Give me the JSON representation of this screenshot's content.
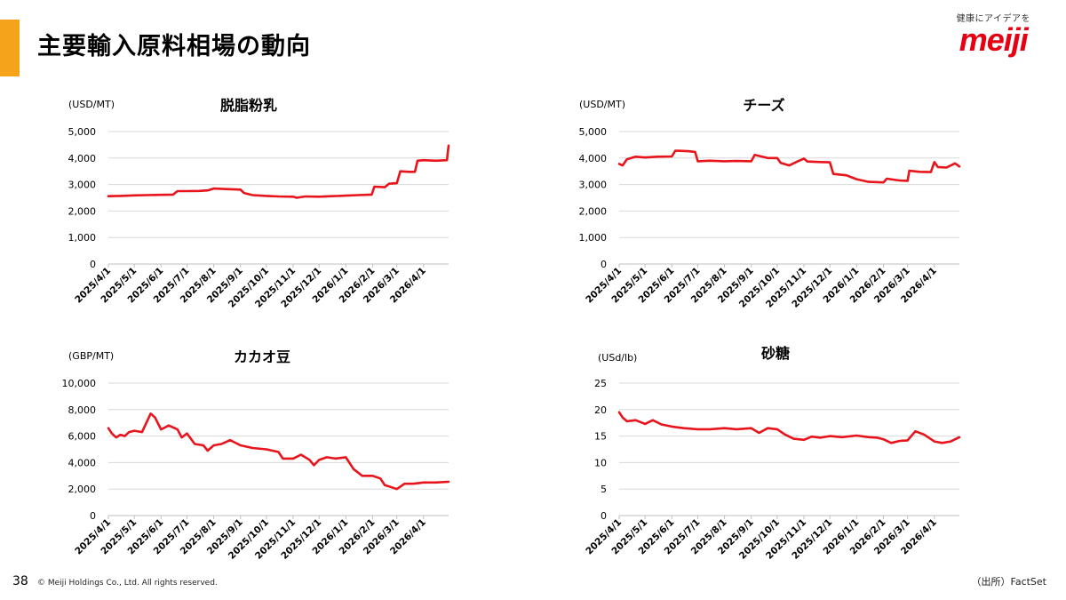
{
  "header": {
    "title": "主要輸入原料相場の動向",
    "accent_color": "#f5a31a"
  },
  "logo": {
    "tagline": "健康にアイデアを",
    "wordmark": "meiji",
    "color": "#e60012"
  },
  "footer": {
    "page_number": "38",
    "copyright": "© Meiji Holdings Co., Ltd. All rights reserved.",
    "source": "（出所）FactSet"
  },
  "chart_data": [
    {
      "type": "line",
      "title": "脱脂粉乳",
      "unit_label": "(USD/MT)",
      "line_color": "#e8141c",
      "grid": true,
      "ylim": [
        0,
        5000
      ],
      "yticks": [
        0,
        1000,
        2000,
        3000,
        4000,
        5000
      ],
      "ytick_labels": [
        "0",
        "1,000",
        "2,000",
        "3,000",
        "4,000",
        "5,000"
      ],
      "xlim": [
        "2025-04-01",
        "2026-04-30"
      ],
      "xticks": [
        "2025-04-01",
        "2025-05-01",
        "2025-06-01",
        "2025-07-01",
        "2025-08-01",
        "2025-09-01",
        "2025-10-01",
        "2025-11-01",
        "2025-12-01",
        "2026-01-01",
        "2026-02-01",
        "2026-03-01",
        "2026-04-01"
      ],
      "xtick_labels": [
        "2025/4/1",
        "2025/5/1",
        "2025/6/1",
        "2025/7/1",
        "2025/8/1",
        "2025/9/1",
        "2025/10/1",
        "2025/11/1",
        "2025/12/1",
        "2026/1/1",
        "2026/2/1",
        "2026/3/1",
        "2026/4/1"
      ],
      "series": [
        {
          "x": [
            "2025-04-01",
            "2025-04-15",
            "2025-05-01",
            "2025-05-15",
            "2025-06-01",
            "2025-06-15",
            "2025-06-20",
            "2025-07-01",
            "2025-07-15",
            "2025-07-25",
            "2025-08-01",
            "2025-08-15",
            "2025-09-01",
            "2025-09-05",
            "2025-09-15",
            "2025-10-01",
            "2025-10-15",
            "2025-11-01",
            "2025-11-05",
            "2025-11-15",
            "2025-12-01",
            "2025-12-15",
            "2026-01-01",
            "2026-01-15",
            "2026-01-31",
            "2026-02-03",
            "2026-02-15",
            "2026-02-20",
            "2026-03-01",
            "2026-03-05",
            "2026-03-15",
            "2026-03-22",
            "2026-03-25",
            "2026-04-01",
            "2026-04-15",
            "2026-04-28",
            "2026-04-30"
          ],
          "y": [
            2560,
            2570,
            2590,
            2600,
            2610,
            2620,
            2750,
            2750,
            2760,
            2780,
            2850,
            2830,
            2810,
            2680,
            2600,
            2570,
            2550,
            2540,
            2500,
            2550,
            2540,
            2560,
            2580,
            2600,
            2620,
            2920,
            2900,
            3030,
            3050,
            3500,
            3480,
            3480,
            3900,
            3920,
            3900,
            3920,
            4470
          ]
        }
      ]
    },
    {
      "type": "line",
      "title": "チーズ",
      "unit_label": "(USD/MT)",
      "line_color": "#e8141c",
      "grid": true,
      "ylim": [
        0,
        5000
      ],
      "yticks": [
        0,
        1000,
        2000,
        3000,
        4000,
        5000
      ],
      "ytick_labels": [
        "0",
        "1,000",
        "2,000",
        "3,000",
        "4,000",
        "5,000"
      ],
      "xlim": [
        "2025-04-01",
        "2026-04-30"
      ],
      "xticks": [
        "2025-04-01",
        "2025-05-01",
        "2025-06-01",
        "2025-07-01",
        "2025-08-01",
        "2025-09-01",
        "2025-10-01",
        "2025-11-01",
        "2025-12-01",
        "2026-01-01",
        "2026-02-01",
        "2026-03-01",
        "2026-04-01"
      ],
      "xtick_labels": [
        "2025/4/1",
        "2025/5/1",
        "2025/6/1",
        "2025/7/1",
        "2025/8/1",
        "2025/9/1",
        "2025/10/1",
        "2025/11/1",
        "2025/12/1",
        "2026/1/1",
        "2026/2/1",
        "2026/3/1",
        "2026/4/1"
      ],
      "series": [
        {
          "x": [
            "2025-04-01",
            "2025-04-05",
            "2025-04-10",
            "2025-04-20",
            "2025-05-01",
            "2025-05-15",
            "2025-06-01",
            "2025-06-05",
            "2025-06-20",
            "2025-06-28",
            "2025-07-01",
            "2025-07-15",
            "2025-08-01",
            "2025-08-15",
            "2025-09-01",
            "2025-09-05",
            "2025-09-20",
            "2025-10-01",
            "2025-10-05",
            "2025-10-15",
            "2025-10-25",
            "2025-11-01",
            "2025-11-05",
            "2025-11-20",
            "2025-12-01",
            "2025-12-05",
            "2025-12-20",
            "2026-01-01",
            "2026-01-15",
            "2026-02-01",
            "2026-02-05",
            "2026-02-20",
            "2026-03-01",
            "2026-03-03",
            "2026-03-15",
            "2026-03-28",
            "2026-04-01",
            "2026-04-05",
            "2026-04-15",
            "2026-04-25",
            "2026-04-30"
          ],
          "y": [
            3780,
            3720,
            3950,
            4050,
            4020,
            4050,
            4060,
            4280,
            4260,
            4230,
            3880,
            3900,
            3880,
            3890,
            3880,
            4120,
            4000,
            4000,
            3820,
            3720,
            3880,
            3980,
            3870,
            3850,
            3840,
            3400,
            3350,
            3200,
            3100,
            3080,
            3220,
            3150,
            3140,
            3520,
            3480,
            3470,
            3850,
            3660,
            3640,
            3800,
            3680
          ]
        }
      ]
    },
    {
      "type": "line",
      "title": "カカオ豆",
      "unit_label": "(GBP/MT)",
      "line_color": "#e8141c",
      "grid": true,
      "ylim": [
        0,
        10000
      ],
      "yticks": [
        0,
        2000,
        4000,
        6000,
        8000,
        10000
      ],
      "ytick_labels": [
        "0",
        "2,000",
        "4,000",
        "6,000",
        "8,000",
        "10,000"
      ],
      "xlim": [
        "2025-04-01",
        "2026-04-30"
      ],
      "xticks": [
        "2025-04-01",
        "2025-05-01",
        "2025-06-01",
        "2025-07-01",
        "2025-08-01",
        "2025-09-01",
        "2025-10-01",
        "2025-11-01",
        "2025-12-01",
        "2026-01-01",
        "2026-02-01",
        "2026-03-01",
        "2026-04-01"
      ],
      "xtick_labels": [
        "2025/4/1",
        "2025/5/1",
        "2025/6/1",
        "2025/7/1",
        "2025/8/1",
        "2025/9/1",
        "2025/10/1",
        "2025/11/1",
        "2025/12/1",
        "2026/1/1",
        "2026/2/1",
        "2026/3/1",
        "2026/4/1"
      ],
      "series": [
        {
          "x": [
            "2025-04-01",
            "2025-04-05",
            "2025-04-10",
            "2025-04-15",
            "2025-04-20",
            "2025-04-25",
            "2025-05-01",
            "2025-05-10",
            "2025-05-20",
            "2025-05-25",
            "2025-06-01",
            "2025-06-10",
            "2025-06-20",
            "2025-06-25",
            "2025-07-01",
            "2025-07-10",
            "2025-07-20",
            "2025-07-25",
            "2025-08-01",
            "2025-08-10",
            "2025-08-20",
            "2025-09-01",
            "2025-09-15",
            "2025-10-01",
            "2025-10-15",
            "2025-10-20",
            "2025-11-01",
            "2025-11-10",
            "2025-11-20",
            "2025-11-25",
            "2025-12-01",
            "2025-12-10",
            "2025-12-20",
            "2026-01-01",
            "2026-01-10",
            "2026-01-20",
            "2026-02-01",
            "2026-02-10",
            "2026-02-15",
            "2026-02-20",
            "2026-03-01",
            "2026-03-10",
            "2026-03-20",
            "2026-04-01",
            "2026-04-15",
            "2026-04-30"
          ],
          "y": [
            6600,
            6200,
            5900,
            6100,
            6000,
            6300,
            6400,
            6300,
            7700,
            7400,
            6500,
            6800,
            6500,
            5900,
            6200,
            5400,
            5300,
            4900,
            5300,
            5400,
            5700,
            5300,
            5100,
            5000,
            4800,
            4300,
            4300,
            4600,
            4200,
            3800,
            4200,
            4400,
            4300,
            4400,
            3500,
            3000,
            3000,
            2800,
            2300,
            2200,
            2000,
            2400,
            2400,
            2500,
            2500,
            2550
          ]
        }
      ]
    },
    {
      "type": "line",
      "title": "砂糖",
      "unit_label": "(USd/lb)",
      "line_color": "#e8141c",
      "grid": true,
      "ylim": [
        0,
        25
      ],
      "yticks": [
        0,
        5,
        10,
        15,
        20,
        25
      ],
      "ytick_labels": [
        "0",
        "5",
        "10",
        "15",
        "20",
        "25"
      ],
      "xlim": [
        "2025-04-01",
        "2026-04-30"
      ],
      "xticks": [
        "2025-04-01",
        "2025-05-01",
        "2025-06-01",
        "2025-07-01",
        "2025-08-01",
        "2025-09-01",
        "2025-10-01",
        "2025-11-01",
        "2025-12-01",
        "2026-01-01",
        "2026-02-01",
        "2026-03-01",
        "2026-04-01"
      ],
      "xtick_labels": [
        "2025/4/1",
        "2025/5/1",
        "2025/6/1",
        "2025/7/1",
        "2025/8/1",
        "2025/9/1",
        "2025/10/1",
        "2025/11/1",
        "2025/12/1",
        "2026/1/1",
        "2026/2/1",
        "2026/3/1",
        "2026/4/1"
      ],
      "series": [
        {
          "x": [
            "2025-04-01",
            "2025-04-05",
            "2025-04-10",
            "2025-04-20",
            "2025-05-01",
            "2025-05-10",
            "2025-05-20",
            "2025-06-01",
            "2025-06-15",
            "2025-07-01",
            "2025-07-15",
            "2025-08-01",
            "2025-08-15",
            "2025-09-01",
            "2025-09-10",
            "2025-09-20",
            "2025-10-01",
            "2025-10-10",
            "2025-10-20",
            "2025-11-01",
            "2025-11-10",
            "2025-11-20",
            "2025-12-01",
            "2025-12-15",
            "2026-01-01",
            "2026-01-15",
            "2026-01-25",
            "2026-02-01",
            "2026-02-10",
            "2026-02-20",
            "2026-03-01",
            "2026-03-10",
            "2026-03-20",
            "2026-04-01",
            "2026-04-10",
            "2026-04-20",
            "2026-04-30"
          ],
          "y": [
            19.5,
            18.5,
            17.8,
            18.0,
            17.3,
            18.0,
            17.2,
            16.8,
            16.5,
            16.3,
            16.3,
            16.5,
            16.3,
            16.5,
            15.6,
            16.5,
            16.3,
            15.3,
            14.5,
            14.3,
            14.9,
            14.7,
            15.0,
            14.8,
            15.1,
            14.8,
            14.7,
            14.4,
            13.7,
            14.1,
            14.2,
            15.9,
            15.3,
            14.0,
            13.7,
            14.0,
            14.8
          ]
        }
      ]
    }
  ]
}
